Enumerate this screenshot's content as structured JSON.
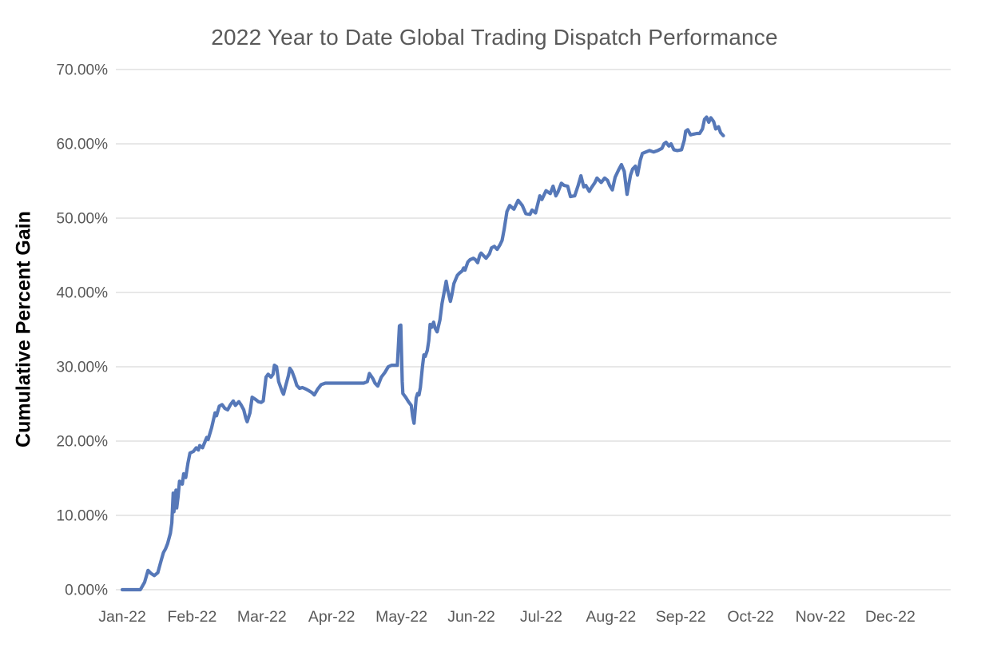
{
  "chart_data": {
    "type": "line",
    "title": "2022 Year to Date Global Trading Dispatch Performance",
    "ylabel": "Cumulative Percent Gain",
    "xlabel": "",
    "x_unit": "months since Jan-22 tick (0 = Jan-22, 1 = Feb-22, ... 11 = Dec-22)",
    "x_tick_labels": [
      "Jan-22",
      "Feb-22",
      "Mar-22",
      "Apr-22",
      "May-22",
      "Jun-22",
      "Jul-22",
      "Aug-22",
      "Sep-22",
      "Oct-22",
      "Nov-22",
      "Dec-22"
    ],
    "y_tick_labels": [
      "0.00%",
      "10.00%",
      "20.00%",
      "30.00%",
      "40.00%",
      "50.00%",
      "60.00%",
      "70.00%"
    ],
    "ylim": [
      0,
      70
    ],
    "xlim": [
      0,
      11.9
    ],
    "grid": true,
    "legend": "none",
    "data_note": "single daily cumulative-gain series; data ends late Sep-22 at about 61%",
    "colors": {
      "line": "#5678b8",
      "gridline": "#d9d9d9",
      "tick_text": "#595959",
      "title_text": "#595959",
      "y_axis_title_text": "#000000",
      "background": "#ffffff"
    },
    "series": [
      {
        "name": "Cumulative Percent Gain",
        "color": "#5678b8",
        "points": [
          [
            0.0,
            0.0
          ],
          [
            0.26,
            0.0
          ],
          [
            0.32,
            1.0
          ],
          [
            0.37,
            2.6
          ],
          [
            0.41,
            2.2
          ],
          [
            0.46,
            1.9
          ],
          [
            0.51,
            2.3
          ],
          [
            0.56,
            4.0
          ],
          [
            0.59,
            5.0
          ],
          [
            0.62,
            5.5
          ],
          [
            0.65,
            6.2
          ],
          [
            0.69,
            7.6
          ],
          [
            0.71,
            9.0
          ],
          [
            0.73,
            13.0
          ],
          [
            0.74,
            10.5
          ],
          [
            0.77,
            13.4
          ],
          [
            0.78,
            11.0
          ],
          [
            0.8,
            12.5
          ],
          [
            0.82,
            14.6
          ],
          [
            0.86,
            14.2
          ],
          [
            0.88,
            15.6
          ],
          [
            0.91,
            15.1
          ],
          [
            0.94,
            17.0
          ],
          [
            0.97,
            18.4
          ],
          [
            1.02,
            18.6
          ],
          [
            1.06,
            19.1
          ],
          [
            1.09,
            18.8
          ],
          [
            1.11,
            19.4
          ],
          [
            1.15,
            19.1
          ],
          [
            1.21,
            20.5
          ],
          [
            1.23,
            20.2
          ],
          [
            1.28,
            21.8
          ],
          [
            1.33,
            23.8
          ],
          [
            1.35,
            23.4
          ],
          [
            1.39,
            24.7
          ],
          [
            1.43,
            24.9
          ],
          [
            1.47,
            24.4
          ],
          [
            1.51,
            24.2
          ],
          [
            1.55,
            24.9
          ],
          [
            1.59,
            25.4
          ],
          [
            1.62,
            24.8
          ],
          [
            1.67,
            25.3
          ],
          [
            1.7,
            24.9
          ],
          [
            1.74,
            24.2
          ],
          [
            1.77,
            23.1
          ],
          [
            1.79,
            22.6
          ],
          [
            1.83,
            23.8
          ],
          [
            1.86,
            25.9
          ],
          [
            1.91,
            25.6
          ],
          [
            1.95,
            25.3
          ],
          [
            1.99,
            25.2
          ],
          [
            2.02,
            25.4
          ],
          [
            2.06,
            28.6
          ],
          [
            2.09,
            29.0
          ],
          [
            2.13,
            28.6
          ],
          [
            2.16,
            29.0
          ],
          [
            2.18,
            30.2
          ],
          [
            2.21,
            30.0
          ],
          [
            2.24,
            28.0
          ],
          [
            2.29,
            26.7
          ],
          [
            2.31,
            26.3
          ],
          [
            2.34,
            27.4
          ],
          [
            2.38,
            28.8
          ],
          [
            2.4,
            29.8
          ],
          [
            2.43,
            29.4
          ],
          [
            2.47,
            28.4
          ],
          [
            2.5,
            27.5
          ],
          [
            2.54,
            27.1
          ],
          [
            2.58,
            27.2
          ],
          [
            2.63,
            27.0
          ],
          [
            2.67,
            26.8
          ],
          [
            2.72,
            26.5
          ],
          [
            2.75,
            26.2
          ],
          [
            2.8,
            27.0
          ],
          [
            2.85,
            27.6
          ],
          [
            2.91,
            27.8
          ],
          [
            3.01,
            27.8
          ],
          [
            3.12,
            27.8
          ],
          [
            3.23,
            27.8
          ],
          [
            3.35,
            27.8
          ],
          [
            3.46,
            27.8
          ],
          [
            3.51,
            28.0
          ],
          [
            3.54,
            29.1
          ],
          [
            3.59,
            28.4
          ],
          [
            3.62,
            27.8
          ],
          [
            3.66,
            27.4
          ],
          [
            3.71,
            28.6
          ],
          [
            3.76,
            29.2
          ],
          [
            3.81,
            30.0
          ],
          [
            3.86,
            30.2
          ],
          [
            3.94,
            30.2
          ],
          [
            3.97,
            35.5
          ],
          [
            3.99,
            35.6
          ],
          [
            4.01,
            28.0
          ],
          [
            4.02,
            26.4
          ],
          [
            4.06,
            25.9
          ],
          [
            4.1,
            25.3
          ],
          [
            4.14,
            24.8
          ],
          [
            4.16,
            23.3
          ],
          [
            4.18,
            22.4
          ],
          [
            4.21,
            25.8
          ],
          [
            4.23,
            26.4
          ],
          [
            4.25,
            26.2
          ],
          [
            4.27,
            27.2
          ],
          [
            4.3,
            30.0
          ],
          [
            4.32,
            31.6
          ],
          [
            4.34,
            31.4
          ],
          [
            4.37,
            32.2
          ],
          [
            4.39,
            33.5
          ],
          [
            4.41,
            35.7
          ],
          [
            4.43,
            35.3
          ],
          [
            4.46,
            36.0
          ],
          [
            4.48,
            35.2
          ],
          [
            4.51,
            34.7
          ],
          [
            4.55,
            36.3
          ],
          [
            4.58,
            38.5
          ],
          [
            4.62,
            40.5
          ],
          [
            4.64,
            41.5
          ],
          [
            4.66,
            40.4
          ],
          [
            4.7,
            38.8
          ],
          [
            4.72,
            39.6
          ],
          [
            4.75,
            41.2
          ],
          [
            4.8,
            42.3
          ],
          [
            4.83,
            42.6
          ],
          [
            4.87,
            42.9
          ],
          [
            4.89,
            43.3
          ],
          [
            4.91,
            43.0
          ],
          [
            4.95,
            44.1
          ],
          [
            4.98,
            44.4
          ],
          [
            5.03,
            44.6
          ],
          [
            5.06,
            44.4
          ],
          [
            5.09,
            44.0
          ],
          [
            5.12,
            45.0
          ],
          [
            5.14,
            45.3
          ],
          [
            5.18,
            44.9
          ],
          [
            5.21,
            44.6
          ],
          [
            5.26,
            45.2
          ],
          [
            5.29,
            46.0
          ],
          [
            5.33,
            46.2
          ],
          [
            5.37,
            45.8
          ],
          [
            5.41,
            46.4
          ],
          [
            5.44,
            47.0
          ],
          [
            5.47,
            48.5
          ],
          [
            5.51,
            50.9
          ],
          [
            5.55,
            51.7
          ],
          [
            5.61,
            51.2
          ],
          [
            5.67,
            52.4
          ],
          [
            5.73,
            51.7
          ],
          [
            5.78,
            50.6
          ],
          [
            5.84,
            50.5
          ],
          [
            5.87,
            51.1
          ],
          [
            5.92,
            50.7
          ],
          [
            5.98,
            53.0
          ],
          [
            6.01,
            52.5
          ],
          [
            6.07,
            53.7
          ],
          [
            6.13,
            53.3
          ],
          [
            6.17,
            54.3
          ],
          [
            6.21,
            53.0
          ],
          [
            6.24,
            53.5
          ],
          [
            6.29,
            54.7
          ],
          [
            6.33,
            54.4
          ],
          [
            6.38,
            54.3
          ],
          [
            6.42,
            52.9
          ],
          [
            6.48,
            53.0
          ],
          [
            6.53,
            54.4
          ],
          [
            6.57,
            55.7
          ],
          [
            6.61,
            54.2
          ],
          [
            6.64,
            54.4
          ],
          [
            6.69,
            53.6
          ],
          [
            6.72,
            54.1
          ],
          [
            6.77,
            54.8
          ],
          [
            6.8,
            55.4
          ],
          [
            6.86,
            54.8
          ],
          [
            6.91,
            55.4
          ],
          [
            6.95,
            55.1
          ],
          [
            6.98,
            54.4
          ],
          [
            7.02,
            53.8
          ],
          [
            7.06,
            55.5
          ],
          [
            7.11,
            56.5
          ],
          [
            7.15,
            57.2
          ],
          [
            7.19,
            56.3
          ],
          [
            7.23,
            53.2
          ],
          [
            7.28,
            55.8
          ],
          [
            7.31,
            56.6
          ],
          [
            7.35,
            57.0
          ],
          [
            7.38,
            55.8
          ],
          [
            7.42,
            57.8
          ],
          [
            7.45,
            58.7
          ],
          [
            7.5,
            58.9
          ],
          [
            7.55,
            59.1
          ],
          [
            7.61,
            58.9
          ],
          [
            7.67,
            59.1
          ],
          [
            7.73,
            59.4
          ],
          [
            7.76,
            60.0
          ],
          [
            7.79,
            60.2
          ],
          [
            7.83,
            59.7
          ],
          [
            7.86,
            60.0
          ],
          [
            7.9,
            59.2
          ],
          [
            7.95,
            59.1
          ],
          [
            8.01,
            59.2
          ],
          [
            8.05,
            60.5
          ],
          [
            8.07,
            61.7
          ],
          [
            8.1,
            61.9
          ],
          [
            8.14,
            61.2
          ],
          [
            8.18,
            61.3
          ],
          [
            8.23,
            61.4
          ],
          [
            8.27,
            61.4
          ],
          [
            8.31,
            62.0
          ],
          [
            8.34,
            63.3
          ],
          [
            8.37,
            63.6
          ],
          [
            8.4,
            62.9
          ],
          [
            8.43,
            63.5
          ],
          [
            8.47,
            63.0
          ],
          [
            8.5,
            62.0
          ],
          [
            8.54,
            62.3
          ],
          [
            8.57,
            61.5
          ],
          [
            8.61,
            61.1
          ]
        ]
      }
    ]
  }
}
